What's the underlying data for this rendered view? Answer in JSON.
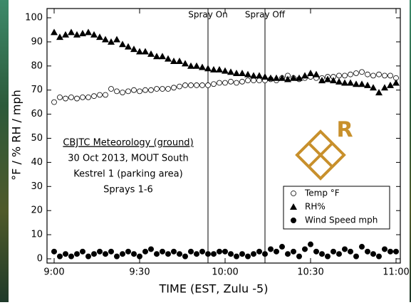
{
  "chart_data": {
    "type": "scatter",
    "x_label": "TIME (EST, Zulu -5)",
    "y_label": "°F / % RH / mph",
    "x": [
      0,
      2,
      4,
      6,
      8,
      10,
      12,
      14,
      16,
      18,
      20,
      22,
      24,
      26,
      28,
      30,
      32,
      34,
      36,
      38,
      40,
      42,
      44,
      46,
      48,
      50,
      52,
      54,
      56,
      58,
      60,
      62,
      64,
      66,
      68,
      70,
      72,
      74,
      76,
      78,
      80,
      82,
      84,
      86,
      88,
      90,
      92,
      94,
      96,
      98,
      100,
      102,
      104,
      106,
      108,
      110,
      112,
      114,
      116,
      118,
      120
    ],
    "series": [
      {
        "name": "Temp °F",
        "marker": "open-circle",
        "color": "#000000",
        "values": [
          65,
          67,
          66.5,
          67,
          66.5,
          67,
          67,
          67.5,
          68,
          68,
          70.5,
          69.5,
          69,
          69.5,
          70,
          69.5,
          70,
          70,
          70.5,
          70.5,
          70.5,
          71,
          71.5,
          72,
          72,
          72,
          72,
          72,
          72.5,
          73,
          73,
          73.5,
          73,
          73.5,
          74,
          74,
          74,
          74,
          74.5,
          74,
          75,
          76,
          75,
          74.5,
          75,
          75.5,
          75,
          75,
          75.5,
          75.5,
          76,
          76,
          76.5,
          77,
          77.5,
          76.5,
          76,
          76.5,
          76,
          76,
          75
        ]
      },
      {
        "name": "RH%",
        "marker": "triangle",
        "color": "#000000",
        "values": [
          94,
          92,
          93,
          94,
          93,
          93.5,
          94,
          93,
          92,
          91,
          90,
          91,
          89,
          88,
          87,
          86,
          86,
          85,
          84,
          84,
          83,
          82,
          82,
          81,
          80,
          80,
          79.5,
          79,
          78.5,
          78.5,
          78,
          77.5,
          77,
          77,
          76.5,
          76,
          76,
          75.5,
          75,
          75,
          75,
          74.5,
          75,
          75,
          76,
          77,
          76.5,
          74,
          74.5,
          74,
          73.5,
          73,
          73,
          72.5,
          72.5,
          72,
          71,
          69,
          71,
          72,
          73
        ]
      },
      {
        "name": "Wind Speed mph",
        "marker": "filled-circle",
        "color": "#000000",
        "values": [
          3,
          1,
          2,
          1,
          2,
          3,
          1,
          2,
          3,
          2,
          3,
          1,
          2,
          3,
          2,
          1,
          3,
          4,
          2,
          3,
          2,
          3,
          2,
          1,
          3,
          2,
          3,
          2,
          2,
          3,
          3,
          2,
          1,
          2,
          1,
          2,
          3,
          2,
          4,
          3,
          5,
          2,
          3,
          1,
          4,
          6,
          3,
          2,
          1,
          3,
          2,
          4,
          3,
          1,
          5,
          3,
          2,
          1,
          4,
          3,
          3
        ]
      }
    ],
    "xlim": [
      0,
      120
    ],
    "xticks": [
      {
        "value": 0,
        "label": "9:00"
      },
      {
        "value": 30,
        "label": "9:30"
      },
      {
        "value": 60,
        "label": "10:00"
      },
      {
        "value": 90,
        "label": "10:30"
      },
      {
        "value": 120,
        "label": "11:00"
      }
    ],
    "ylim": [
      0,
      100
    ],
    "yticks": [
      0,
      10,
      20,
      30,
      40,
      50,
      60,
      70,
      80,
      90,
      100
    ],
    "annotations": [
      {
        "text": "Spray On",
        "x": 54
      },
      {
        "text": "Spray Off",
        "x": 74
      }
    ],
    "info_box": [
      "CBJTC Meteorology (ground)",
      "30 Oct 2013, MOUT South",
      "Kestrel 1 (parking area)",
      "Sprays 1-6"
    ],
    "logo_letter": "R",
    "legend": "lower right"
  }
}
